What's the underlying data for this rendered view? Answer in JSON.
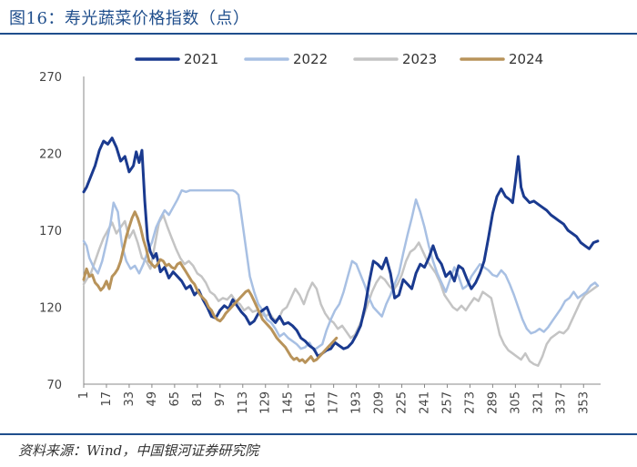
{
  "title": "图16：寿光蔬菜价格指数（点）",
  "source": "资料来源：Wind，中国银河证券研究院",
  "chart_data": {
    "type": "line",
    "title": "图16：寿光蔬菜价格指数（点）",
    "xlabel": "",
    "ylabel": "",
    "xlim": [
      1,
      365
    ],
    "ylim": [
      70,
      270
    ],
    "yticks": [
      70,
      120,
      170,
      220,
      270
    ],
    "xticks": [
      "1",
      "17",
      "33",
      "49",
      "65",
      "81",
      "97",
      "113",
      "129",
      "145",
      "161",
      "177",
      "193",
      "209",
      "225",
      "241",
      "257",
      "273",
      "289",
      "305",
      "321",
      "337",
      "353"
    ],
    "legend_position": "top",
    "series": [
      {
        "name": "2021",
        "color": "#1a3a8f",
        "x": [
          1,
          3,
          6,
          9,
          12,
          15,
          18,
          21,
          24,
          27,
          30,
          33,
          36,
          38,
          40,
          42,
          44,
          46,
          48,
          50,
          52,
          55,
          58,
          61,
          64,
          67,
          70,
          73,
          76,
          79,
          82,
          85,
          88,
          91,
          94,
          97,
          100,
          103,
          106,
          109,
          112,
          115,
          118,
          121,
          124,
          127,
          130,
          133,
          136,
          139,
          142,
          145,
          148,
          151,
          154,
          157,
          160,
          163,
          166,
          169,
          172,
          175,
          178,
          181,
          184,
          187,
          190,
          193,
          196,
          199,
          202,
          205,
          208,
          211,
          214,
          217,
          220,
          223,
          226,
          229,
          232,
          235,
          238,
          241,
          244,
          247,
          250,
          253,
          256,
          259,
          262,
          265,
          268,
          271,
          274,
          277,
          280,
          283,
          286,
          289,
          292,
          295,
          298,
          301,
          303,
          305,
          307,
          309,
          311,
          313,
          315,
          318,
          321,
          324,
          327,
          330,
          333,
          336,
          339,
          342,
          345,
          348,
          351,
          354,
          357,
          360,
          363
        ],
        "values": [
          195,
          198,
          205,
          212,
          222,
          228,
          226,
          230,
          224,
          215,
          218,
          208,
          212,
          221,
          214,
          222,
          189,
          164,
          156,
          152,
          155,
          143,
          146,
          139,
          143,
          140,
          137,
          132,
          134,
          128,
          131,
          125,
          120,
          114,
          113,
          118,
          121,
          119,
          125,
          121,
          117,
          114,
          109,
          111,
          116,
          118,
          120,
          113,
          110,
          114,
          109,
          110,
          108,
          105,
          100,
          98,
          95,
          93,
          88,
          90,
          92,
          93,
          97,
          95,
          93,
          94,
          97,
          102,
          108,
          120,
          136,
          150,
          148,
          145,
          152,
          142,
          126,
          128,
          138,
          135,
          132,
          142,
          148,
          146,
          152,
          160,
          152,
          148,
          140,
          143,
          137,
          147,
          145,
          138,
          132,
          136,
          142,
          150,
          165,
          181,
          192,
          197,
          192,
          190,
          188,
          202,
          218,
          198,
          192,
          190,
          188,
          189,
          187,
          185,
          183,
          180,
          178,
          176,
          174,
          170,
          168,
          166,
          162,
          160,
          158,
          162,
          163
        ]
      },
      {
        "name": "2022",
        "color": "#a8c0e3",
        "x": [
          1,
          3,
          5,
          8,
          11,
          14,
          17,
          20,
          22,
          25,
          28,
          31,
          34,
          37,
          40,
          43,
          46,
          49,
          52,
          55,
          58,
          61,
          64,
          67,
          70,
          73,
          76,
          79,
          82,
          85,
          88,
          91,
          94,
          97,
          100,
          103,
          106,
          108,
          110,
          112,
          115,
          118,
          121,
          124,
          127,
          130,
          133,
          136,
          139,
          142,
          145,
          148,
          151,
          154,
          157,
          160,
          163,
          166,
          169,
          172,
          175,
          178,
          181,
          184,
          187,
          190,
          193,
          196,
          199,
          202,
          205,
          208,
          211,
          214,
          217,
          220,
          223,
          226,
          229,
          232,
          235,
          238,
          241,
          244,
          247,
          250,
          253,
          256,
          259,
          262,
          265,
          268,
          271,
          274,
          277,
          280,
          283,
          286,
          289,
          292,
          295,
          298,
          301,
          304,
          307,
          310,
          313,
          316,
          319,
          322,
          325,
          328,
          331,
          334,
          337,
          340,
          343,
          346,
          349,
          352,
          355,
          358,
          361,
          363
        ],
        "values": [
          163,
          160,
          152,
          146,
          142,
          150,
          162,
          175,
          188,
          182,
          160,
          150,
          145,
          147,
          142,
          148,
          156,
          162,
          172,
          178,
          183,
          180,
          185,
          190,
          196,
          195,
          196,
          196,
          196,
          196,
          196,
          196,
          196,
          196,
          196,
          196,
          196,
          195,
          193,
          180,
          160,
          140,
          130,
          122,
          118,
          112,
          110,
          106,
          101,
          103,
          100,
          98,
          96,
          93,
          94,
          97,
          92,
          94,
          96,
          105,
          112,
          118,
          122,
          130,
          140,
          150,
          148,
          141,
          134,
          126,
          120,
          117,
          114,
          122,
          128,
          135,
          142,
          155,
          167,
          178,
          190,
          182,
          172,
          160,
          150,
          142,
          136,
          130,
          138,
          146,
          140,
          132,
          134,
          140,
          144,
          148,
          146,
          144,
          141,
          140,
          144,
          141,
          135,
          128,
          120,
          112,
          106,
          103,
          104,
          106,
          104,
          107,
          111,
          115,
          119,
          124,
          126,
          130,
          126,
          128,
          130,
          134,
          136,
          134
        ]
      },
      {
        "name": "2023",
        "color": "#c4c4c4",
        "x": [
          1,
          3,
          6,
          9,
          12,
          15,
          18,
          21,
          24,
          27,
          30,
          33,
          36,
          39,
          42,
          45,
          48,
          51,
          54,
          57,
          60,
          63,
          66,
          69,
          72,
          75,
          78,
          81,
          84,
          87,
          90,
          93,
          96,
          99,
          102,
          105,
          108,
          111,
          114,
          117,
          120,
          123,
          126,
          129,
          132,
          135,
          138,
          141,
          144,
          147,
          150,
          153,
          156,
          159,
          162,
          165,
          168,
          171,
          174,
          177,
          180,
          183,
          186,
          189,
          192,
          195,
          198,
          201,
          204,
          207,
          210,
          213,
          216,
          219,
          222,
          225,
          228,
          231,
          234,
          237,
          240,
          243,
          246,
          249,
          252,
          255,
          258,
          261,
          264,
          267,
          270,
          273,
          276,
          279,
          282,
          285,
          288,
          291,
          294,
          297,
          300,
          303,
          306,
          309,
          312,
          315,
          318,
          321,
          324,
          327,
          330,
          333,
          336,
          339,
          342,
          345,
          348,
          351,
          354,
          357,
          360,
          363
        ],
        "values": [
          135,
          138,
          142,
          150,
          158,
          165,
          170,
          175,
          168,
          172,
          176,
          165,
          170,
          162,
          152,
          150,
          145,
          160,
          175,
          180,
          172,
          165,
          158,
          152,
          148,
          150,
          147,
          142,
          140,
          136,
          130,
          128,
          124,
          126,
          125,
          128,
          124,
          122,
          118,
          120,
          117,
          118,
          116,
          114,
          116,
          112,
          112,
          118,
          120,
          126,
          132,
          128,
          122,
          130,
          136,
          132,
          122,
          116,
          112,
          110,
          106,
          108,
          104,
          100,
          102,
          108,
          114,
          122,
          130,
          136,
          140,
          138,
          134,
          131,
          135,
          141,
          150,
          156,
          158,
          162,
          156,
          150,
          146,
          142,
          136,
          128,
          124,
          120,
          118,
          121,
          118,
          122,
          126,
          124,
          130,
          128,
          126,
          114,
          102,
          96,
          92,
          90,
          88,
          86,
          90,
          85,
          83,
          82,
          88,
          96,
          100,
          102,
          104,
          103,
          106,
          112,
          118,
          124,
          128,
          130,
          132,
          134
        ]
      },
      {
        "name": "2024",
        "color": "#b8935a",
        "x": [
          1,
          3,
          5,
          7,
          9,
          11,
          13,
          15,
          17,
          19,
          21,
          23,
          25,
          27,
          29,
          31,
          33,
          35,
          37,
          39,
          41,
          43,
          45,
          47,
          49,
          51,
          53,
          55,
          57,
          59,
          61,
          63,
          65,
          67,
          69,
          71,
          73,
          75,
          77,
          79,
          81,
          83,
          85,
          87,
          89,
          91,
          93,
          95,
          97,
          99,
          101,
          103,
          105,
          107,
          109,
          111,
          113,
          115,
          117,
          119,
          121,
          123,
          125,
          127,
          129,
          131,
          133,
          135,
          137,
          139,
          141,
          143,
          145,
          147,
          149,
          151,
          153,
          155,
          157,
          159,
          161,
          163,
          165,
          167,
          169,
          171,
          173,
          175,
          177,
          179
        ],
        "values": [
          138,
          145,
          140,
          141,
          136,
          134,
          131,
          133,
          137,
          132,
          140,
          142,
          145,
          150,
          158,
          166,
          172,
          178,
          182,
          178,
          172,
          164,
          158,
          150,
          148,
          146,
          148,
          151,
          150,
          147,
          148,
          146,
          145,
          148,
          149,
          146,
          143,
          140,
          137,
          135,
          131,
          128,
          126,
          124,
          120,
          118,
          114,
          112,
          111,
          113,
          116,
          118,
          120,
          122,
          124,
          126,
          128,
          130,
          131,
          128,
          124,
          120,
          116,
          112,
          110,
          108,
          106,
          103,
          100,
          98,
          96,
          94,
          91,
          88,
          86,
          87,
          85,
          86,
          84,
          86,
          88,
          85,
          86,
          88,
          90,
          92,
          94,
          96,
          98,
          100
        ]
      }
    ]
  }
}
